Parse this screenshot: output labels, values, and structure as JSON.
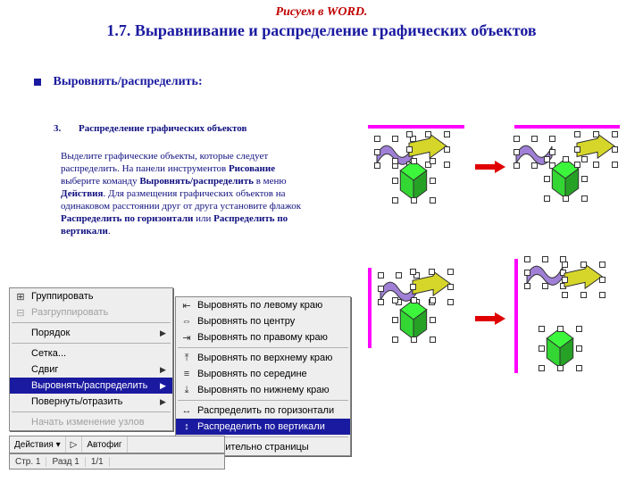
{
  "title_small": "Рисуем в WORD.",
  "title_big": "1.7. Выравнивание и распределение графических объектов",
  "bullet_label": "Выровнять/распределить:",
  "section_num": "3.",
  "section_label": "Распределение графических объектов",
  "body": {
    "t1": "Выделите графические объекты, которые следует распределить. На панели инструментов ",
    "b1": "Рисование",
    "t2": " выберите команду ",
    "b2": "Выровнять/распределить",
    "t3": " в меню ",
    "b3": "Действия",
    "t4": ". Для размещения графических объектов на одинаковом расстоянии друг от друга установите флажок ",
    "b4": "Распределить по горизонтали",
    "t5": " или ",
    "b5": "Распределить по вертикали",
    "t6": "."
  },
  "menu_left": [
    {
      "icon": "⊞",
      "label": "Группировать",
      "enabled": true,
      "arrow": false
    },
    {
      "icon": "⊟",
      "label": "Разгруппировать",
      "enabled": false,
      "arrow": false
    },
    {
      "sep": true
    },
    {
      "icon": "",
      "label": "Порядок",
      "enabled": true,
      "arrow": true
    },
    {
      "sep": true
    },
    {
      "icon": "",
      "label": "Сетка...",
      "enabled": true,
      "arrow": false
    },
    {
      "icon": "",
      "label": "Сдвиг",
      "enabled": true,
      "arrow": true
    },
    {
      "icon": "",
      "label": "Выровнять/распределить",
      "enabled": true,
      "arrow": true,
      "selected": true
    },
    {
      "icon": "",
      "label": "Повернуть/отразить",
      "enabled": true,
      "arrow": true
    },
    {
      "sep": true
    },
    {
      "icon": "",
      "label": "Начать изменение узлов",
      "enabled": false,
      "arrow": false
    }
  ],
  "menu_right": [
    {
      "icon": "⇤",
      "label": "Выровнять по левому краю"
    },
    {
      "icon": "⇔",
      "label": "Выровнять по центру"
    },
    {
      "icon": "⇥",
      "label": "Выровнять по правому краю"
    },
    {
      "sep": true
    },
    {
      "icon": "⤒",
      "label": "Выровнять по верхнему краю"
    },
    {
      "icon": "≡",
      "label": "Выровнять по середине"
    },
    {
      "icon": "⤓",
      "label": "Выровнять по нижнему краю"
    },
    {
      "sep": true
    },
    {
      "icon": "↔",
      "label": "Распределить по горизонтали"
    },
    {
      "icon": "↕",
      "label": "Распределить по вертикали",
      "selected": true
    },
    {
      "sep": true
    },
    {
      "icon": "",
      "label": "Относительно страницы"
    }
  ],
  "toolbar": {
    "actions": "Действия ▾",
    "ptr": "▷",
    "autofig": "Автофиг"
  },
  "statusbar": {
    "page": "Стр. 1",
    "sect": "Разд 1",
    "pos": "1/1"
  },
  "colors": {
    "green": "#33d633",
    "yellow": "#d6d62a",
    "purple": "#a080d6",
    "magenta": "#ff00ff",
    "red": "#e00000",
    "outline": "#303030"
  }
}
